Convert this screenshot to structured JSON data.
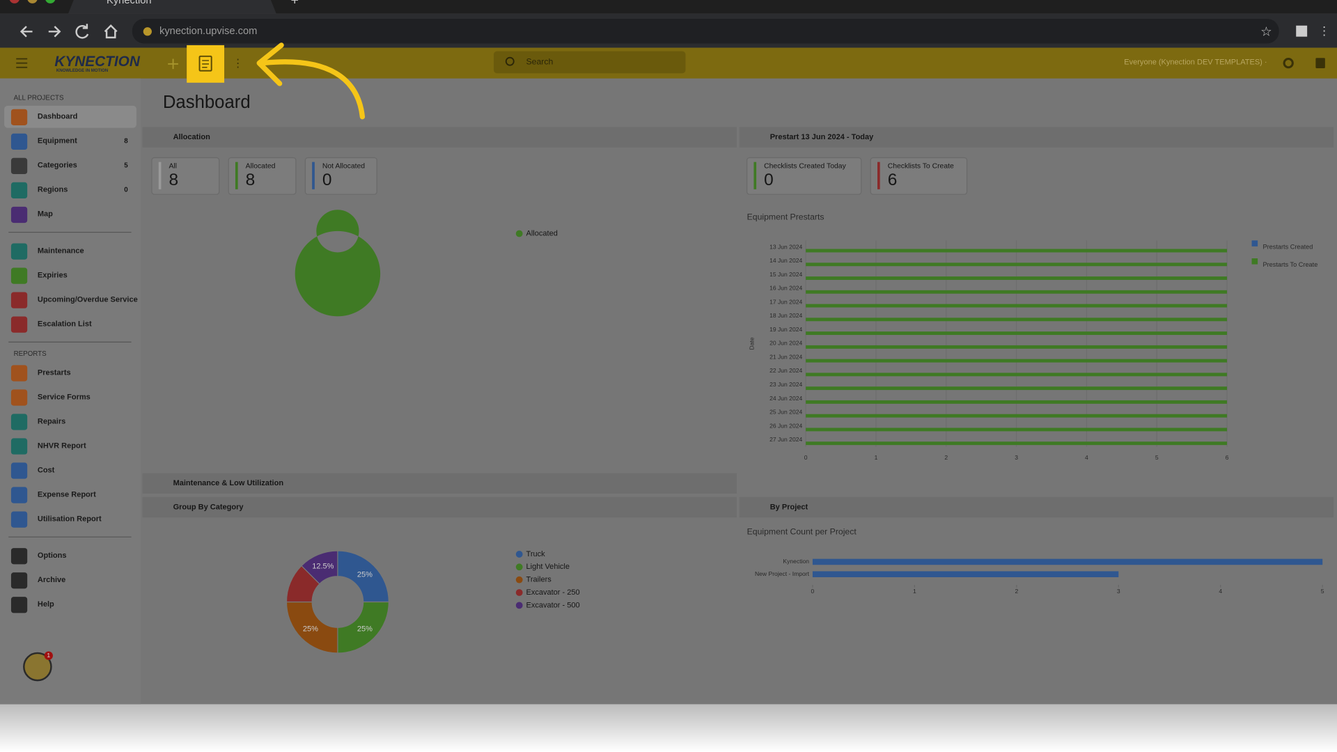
{
  "browser": {
    "tab_title": "Kynection",
    "url": "kynection.upvise.com"
  },
  "header": {
    "logo": "KYNECTION",
    "logo_tagline": "KNOWLEDGE IN MOTION",
    "search_placeholder": "Search",
    "account": "Everyone (Kynection DEV TEMPLATES) ·"
  },
  "sidebar": {
    "groups": [
      {
        "title": "ALL PROJECTS",
        "items": [
          {
            "label": "Dashboard",
            "icon_color": "#a0521d",
            "active": true
          },
          {
            "label": "Equipment",
            "count": 8,
            "icon_color": "#2f5790"
          },
          {
            "label": "Categories",
            "count": 5,
            "icon_color": "#3a3a3a"
          },
          {
            "label": "Regions",
            "count": 0,
            "icon_color": "#1f6b63"
          },
          {
            "label": "Map",
            "icon_color": "#4a2c72"
          }
        ]
      },
      {
        "items": [
          {
            "label": "Maintenance",
            "icon_color": "#1f6b63"
          },
          {
            "label": "Expiries",
            "icon_color": "#3f7a24"
          },
          {
            "label": "Upcoming/Overdue Service",
            "icon_color": "#8a2a2a"
          },
          {
            "label": "Escalation List",
            "icon_color": "#8a2a2a"
          }
        ]
      },
      {
        "title": "REPORTS",
        "items": [
          {
            "label": "Prestarts",
            "icon_color": "#a0521d"
          },
          {
            "label": "Service Forms",
            "icon_color": "#a0521d"
          },
          {
            "label": "Repairs",
            "icon_color": "#1f6b63"
          },
          {
            "label": "NHVR Report",
            "icon_color": "#1f6b63"
          },
          {
            "label": "Cost",
            "icon_color": "#2f5790"
          },
          {
            "label": "Expense Report",
            "icon_color": "#2f5790"
          },
          {
            "label": "Utilisation Report",
            "icon_color": "#2f5790"
          }
        ]
      },
      {
        "items": [
          {
            "label": "Options",
            "icon_color": "#2a2a2a"
          },
          {
            "label": "Archive",
            "icon_color": "#2a2a2a"
          },
          {
            "label": "Help",
            "icon_color": "#2a2a2a"
          }
        ]
      }
    ]
  },
  "notification_badge": 1,
  "dashboard": {
    "title": "Dashboard",
    "allocation": {
      "title": "Allocation",
      "stats": [
        {
          "label": "All",
          "value": 8,
          "color": "#9a9a9a"
        },
        {
          "label": "Allocated",
          "value": 8,
          "color": "#3f7a24"
        },
        {
          "label": "Not Allocated",
          "value": 0,
          "color": "#2f5790"
        }
      ],
      "chart": {
        "type": "donut",
        "categories": [
          "Allocated"
        ],
        "values": [
          8
        ],
        "colors": [
          "#3f7a24"
        ]
      }
    },
    "prestart": {
      "title": "Prestart 13 Jun 2024 - Today",
      "stats": [
        {
          "label": "Checklists Created Today",
          "value": 0,
          "color": "#3f7a24"
        },
        {
          "label": "Checklists To Create",
          "value": 6,
          "color": "#8a2a2a"
        }
      ],
      "chart": {
        "type": "hbar",
        "title": "Equipment Prestarts",
        "y_label": "Date",
        "categories": [
          "13 Jun 2024",
          "14 Jun 2024",
          "15 Jun 2024",
          "16 Jun 2024",
          "17 Jun 2024",
          "18 Jun 2024",
          "19 Jun 2024",
          "20 Jun 2024",
          "21 Jun 2024",
          "22 Jun 2024",
          "23 Jun 2024",
          "24 Jun 2024",
          "25 Jun 2024",
          "26 Jun 2024",
          "27 Jun 2024"
        ],
        "series": [
          {
            "name": "Prestarts Created",
            "color": "#2f5790",
            "values": [
              0,
              0,
              0,
              0,
              0,
              0,
              0,
              0,
              0,
              0,
              0,
              0,
              0,
              0,
              0
            ]
          },
          {
            "name": "Prestarts To Create",
            "color": "#3f7a24",
            "values": [
              6,
              6,
              6,
              6,
              6,
              6,
              6,
              6,
              6,
              6,
              6,
              6,
              6,
              6,
              6
            ]
          }
        ],
        "xlim": [
          0,
          6
        ],
        "xticks": [
          0,
          1,
          2,
          3,
          4,
          5,
          6
        ],
        "grid": true
      }
    },
    "maintenance": {
      "title": "Maintenance & Low Utilization"
    },
    "group_by_category": {
      "title": "Group By Category",
      "chart": {
        "type": "donut",
        "categories": [
          "Truck",
          "Light Vehicle",
          "Trailers",
          "Excavator - 250",
          "Excavator - 500"
        ],
        "values": [
          25,
          25,
          25,
          12.5,
          12.5
        ],
        "value_labels": [
          "25%",
          "25%",
          "25%",
          null,
          "12.5%"
        ],
        "colors": [
          "#2f5790",
          "#3f7a24",
          "#8a4a10",
          "#8a2a2a",
          "#4a2c72"
        ]
      }
    },
    "by_project": {
      "title": "By Project",
      "chart": {
        "type": "hbar",
        "title": "Equipment Count per Project",
        "categories": [
          "Kynection",
          "New Project - Import"
        ],
        "series": [
          {
            "color": "#2f5790",
            "values": [
              5,
              3
            ]
          }
        ],
        "xlim": [
          0,
          5
        ],
        "xticks": [
          0,
          1,
          2,
          3,
          4,
          5
        ],
        "grid": false
      }
    }
  }
}
